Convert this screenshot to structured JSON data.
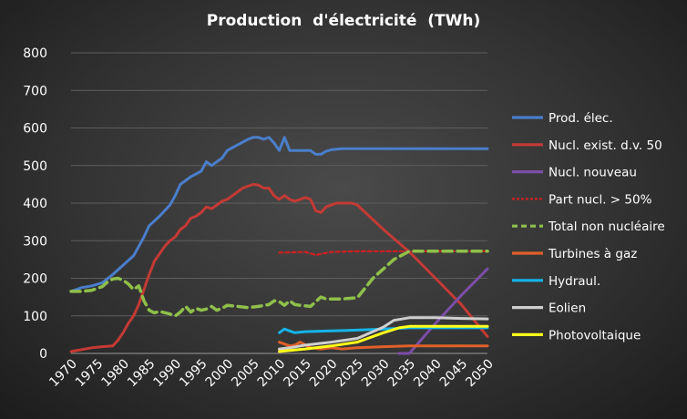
{
  "chart_data": {
    "type": "line",
    "title": "Production  d'électricité  (TWh)",
    "xlabel": "",
    "ylabel": "",
    "xlim": [
      1970,
      2050
    ],
    "ylim": [
      0,
      800
    ],
    "yticks": [
      0,
      100,
      200,
      300,
      400,
      500,
      600,
      700,
      800
    ],
    "xticks": [
      1970,
      1975,
      1980,
      1985,
      1990,
      1995,
      2000,
      2005,
      2010,
      2015,
      2020,
      2025,
      2030,
      2035,
      2040,
      2045,
      2050
    ],
    "grid": true,
    "legend_position": "right",
    "series": [
      {
        "name": "Prod. élec.",
        "color": "#4a7ecb",
        "dash": "solid",
        "x": [
          1970,
          1972,
          1974,
          1976,
          1978,
          1980,
          1982,
          1984,
          1985,
          1987,
          1989,
          1990,
          1991,
          1993,
          1995,
          1996,
          1997,
          1998,
          1999,
          2000,
          2002,
          2004,
          2005,
          2006,
          2007,
          2008,
          2009,
          2010,
          2011,
          2012,
          2014,
          2016,
          2017,
          2018,
          2019,
          2020,
          2022,
          2025,
          2030,
          2040,
          2050
        ],
        "y": [
          165,
          175,
          180,
          188,
          210,
          235,
          260,
          310,
          340,
          365,
          395,
          420,
          450,
          470,
          485,
          510,
          500,
          510,
          520,
          540,
          555,
          570,
          575,
          575,
          570,
          575,
          560,
          540,
          575,
          540,
          540,
          540,
          530,
          530,
          538,
          542,
          545,
          545,
          545,
          545,
          545
        ]
      },
      {
        "name": "Nucl. exist. d.v. 50",
        "color": "#c43a35",
        "dash": "solid",
        "x": [
          1970,
          1972,
          1974,
          1976,
          1978,
          1979,
          1980,
          1981,
          1982,
          1983,
          1984,
          1985,
          1986,
          1987,
          1988,
          1989,
          1990,
          1991,
          1992,
          1993,
          1994,
          1995,
          1996,
          1997,
          1998,
          1999,
          2000,
          2001,
          2002,
          2003,
          2004,
          2005,
          2006,
          2007,
          2008,
          2009,
          2010,
          2011,
          2012,
          2013,
          2014,
          2015,
          2016,
          2017,
          2018,
          2019,
          2020,
          2021,
          2022,
          2024,
          2025,
          2030,
          2035,
          2040,
          2045,
          2050
        ],
        "y": [
          5,
          10,
          15,
          18,
          20,
          35,
          55,
          80,
          100,
          130,
          170,
          210,
          245,
          265,
          285,
          300,
          310,
          330,
          340,
          360,
          365,
          375,
          390,
          385,
          395,
          405,
          410,
          420,
          430,
          440,
          445,
          450,
          448,
          440,
          440,
          420,
          410,
          420,
          410,
          405,
          410,
          415,
          410,
          380,
          375,
          390,
          395,
          400,
          400,
          400,
          395,
          330,
          270,
          200,
          130,
          45
        ]
      },
      {
        "name": "Nucl. nouveau",
        "color": "#7c4da8",
        "dash": "solid",
        "x": [
          2033,
          2035,
          2040,
          2045,
          2050
        ],
        "y": [
          0,
          0,
          80,
          155,
          225
        ]
      },
      {
        "name": "Part nucl. > 50%",
        "color": "#d02020",
        "dash": "dotted",
        "x": [
          2010,
          2015,
          2017,
          2020,
          2025,
          2030,
          2035,
          2040,
          2045,
          2050
        ],
        "y": [
          268,
          270,
          262,
          270,
          272,
          272,
          272,
          272,
          272,
          272
        ]
      },
      {
        "name": "Total non nucléaire",
        "color": "#8fc04a",
        "dash": "dashed",
        "x": [
          1970,
          1972,
          1974,
          1976,
          1977,
          1978,
          1979,
          1980,
          1981,
          1982,
          1983,
          1984,
          1985,
          1986,
          1987,
          1989,
          1990,
          1991,
          1992,
          1993,
          1994,
          1995,
          1996,
          1997,
          1998,
          1999,
          2000,
          2002,
          2004,
          2006,
          2008,
          2009,
          2010,
          2011,
          2012,
          2013,
          2014,
          2016,
          2018,
          2019,
          2020,
          2022,
          2025,
          2028,
          2030,
          2032,
          2035,
          2040,
          2045,
          2050
        ],
        "y": [
          165,
          165,
          168,
          178,
          190,
          198,
          200,
          195,
          185,
          170,
          180,
          140,
          115,
          108,
          112,
          105,
          100,
          110,
          125,
          110,
          120,
          115,
          118,
          125,
          115,
          120,
          128,
          125,
          122,
          125,
          130,
          140,
          138,
          128,
          140,
          130,
          128,
          125,
          150,
          145,
          145,
          145,
          148,
          200,
          225,
          250,
          272,
          272,
          272,
          272
        ]
      },
      {
        "name": "Turbines à gaz",
        "color": "#e0602a",
        "dash": "solid",
        "x": [
          2010,
          2011,
          2012,
          2013,
          2014,
          2016,
          2018,
          2020,
          2022,
          2025,
          2030,
          2035,
          2040,
          2045,
          2050
        ],
        "y": [
          30,
          25,
          20,
          22,
          30,
          15,
          12,
          15,
          12,
          15,
          18,
          20,
          20,
          20,
          20
        ]
      },
      {
        "name": "Hydraul.",
        "color": "#14b4e8",
        "dash": "solid",
        "x": [
          2010,
          2011,
          2012,
          2013,
          2015,
          2020,
          2025,
          2030,
          2035,
          2040,
          2045,
          2050
        ],
        "y": [
          55,
          65,
          60,
          55,
          58,
          60,
          62,
          65,
          68,
          68,
          68,
          68
        ]
      },
      {
        "name": "Eolien",
        "color": "#cfcfcf",
        "dash": "solid",
        "x": [
          2010,
          2012,
          2015,
          2020,
          2025,
          2030,
          2032,
          2035,
          2040,
          2045,
          2050
        ],
        "y": [
          12,
          15,
          22,
          30,
          40,
          70,
          88,
          95,
          95,
          93,
          92
        ]
      },
      {
        "name": "Photovoltaique",
        "color": "#ffff1a",
        "dash": "solid",
        "x": [
          2010,
          2012,
          2015,
          2020,
          2025,
          2030,
          2033,
          2035,
          2040,
          2045,
          2050
        ],
        "y": [
          5,
          8,
          12,
          20,
          30,
          55,
          68,
          72,
          72,
          72,
          72
        ]
      }
    ]
  }
}
